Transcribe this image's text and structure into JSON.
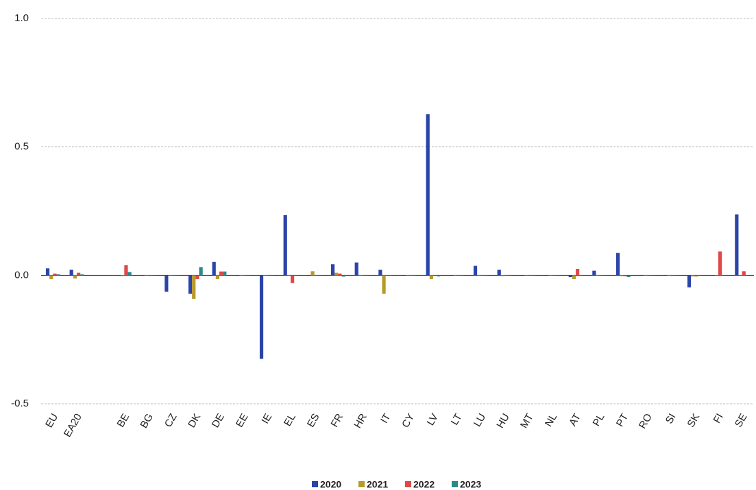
{
  "chart_data": {
    "type": "bar",
    "categories": [
      "EU",
      "EA20",
      null,
      "BE",
      "BG",
      "CZ",
      "DK",
      "DE",
      "EE",
      "IE",
      "EL",
      "ES",
      "FR",
      "HR",
      "IT",
      "CY",
      "LV",
      "LT",
      "LU",
      "HU",
      "MT",
      "NL",
      "AT",
      "PL",
      "PT",
      "RO",
      "SI",
      "SK",
      "FI",
      "SE"
    ],
    "series": [
      {
        "name": "2020",
        "color": "#2a44a8",
        "values": [
          0.027,
          0.022,
          null,
          0,
          0,
          -0.064,
          -0.072,
          0.052,
          0,
          -0.325,
          0.235,
          0,
          0.043,
          0.05,
          0.022,
          0,
          0.627,
          0,
          0.037,
          0.022,
          0,
          0,
          -0.007,
          0.018,
          0.087,
          0,
          0,
          -0.047,
          0,
          0.237
        ]
      },
      {
        "name": "2021",
        "color": "#b69a2a",
        "values": [
          -0.015,
          -0.012,
          null,
          -0.003,
          0,
          0,
          -0.092,
          -0.015,
          0,
          0,
          0,
          0.016,
          0.01,
          0,
          -0.072,
          0,
          -0.015,
          0,
          0,
          -0.003,
          0,
          0,
          -0.015,
          0,
          -0.003,
          0,
          0,
          -0.004,
          0,
          0
        ]
      },
      {
        "name": "2022",
        "color": "#e04848",
        "values": [
          0.007,
          0.01,
          null,
          0.04,
          0,
          0,
          -0.015,
          0.015,
          0,
          0,
          -0.03,
          0,
          0.007,
          0,
          0,
          0,
          0,
          0,
          0,
          0,
          0,
          0,
          0.025,
          0,
          -0.003,
          0,
          0,
          -0.004,
          0.093,
          0.016
        ]
      },
      {
        "name": "2023",
        "color": "#2a8a88",
        "values": [
          0.004,
          0.004,
          null,
          0.013,
          0,
          0,
          0.032,
          0.015,
          0,
          0,
          0,
          0,
          -0.005,
          0,
          0,
          0,
          -0.004,
          0,
          0,
          0,
          0,
          0,
          0,
          0,
          -0.007,
          0,
          0,
          0,
          0,
          0
        ]
      }
    ],
    "ylim": [
      -0.5,
      1
    ],
    "yticks": [
      {
        "value": 1,
        "label": "1.0"
      },
      0.5,
      {
        "value": 0,
        "label": "0.0"
      },
      -0.5
    ],
    "grid": true,
    "legend": "bottom"
  }
}
